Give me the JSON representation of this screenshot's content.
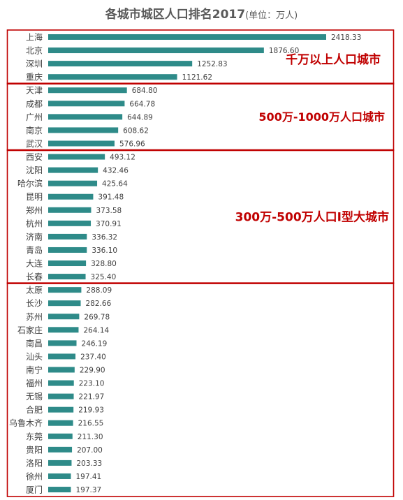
{
  "chart_data": {
    "type": "bar",
    "orientation": "horizontal",
    "title": "各城市城区人口排名2017",
    "unit_label": "(单位：万人)",
    "bar_color": "#2e8b89",
    "box_color": "#c00000",
    "categories": [
      "上海",
      "北京",
      "深圳",
      "重庆",
      "天津",
      "成都",
      "广州",
      "南京",
      "武汉",
      "西安",
      "沈阳",
      "哈尔滨",
      "昆明",
      "郑州",
      "杭州",
      "济南",
      "青岛",
      "大连",
      "长春",
      "太原",
      "长沙",
      "苏州",
      "石家庄",
      "南昌",
      "汕头",
      "南宁",
      "福州",
      "无锡",
      "合肥",
      "乌鲁木齐",
      "东莞",
      "贵阳",
      "洛阳",
      "徐州",
      "厦门"
    ],
    "values": [
      2418.33,
      1876.6,
      1252.83,
      1121.62,
      684.8,
      664.78,
      644.89,
      608.62,
      576.96,
      493.12,
      432.46,
      425.64,
      391.48,
      373.58,
      370.91,
      336.32,
      336.1,
      328.8,
      325.4,
      288.09,
      282.66,
      269.78,
      264.14,
      246.19,
      237.4,
      229.9,
      223.1,
      221.97,
      219.93,
      216.55,
      211.3,
      207.0,
      203.33,
      197.41,
      197.37
    ],
    "value_labels": [
      "2418.33",
      "1876.60",
      "1252.83",
      "1121.62",
      "684.80",
      "664.78",
      "644.89",
      "608.62",
      "576.96",
      "493.12",
      "432.46",
      "425.64",
      "391.48",
      "373.58",
      "370.91",
      "336.32",
      "336.10",
      "328.80",
      "325.40",
      "288.09",
      "282.66",
      "269.78",
      "264.14",
      "246.19",
      "237.40",
      "229.90",
      "223.10",
      "221.97",
      "219.93",
      "216.55",
      "211.30",
      "207.00",
      "203.33",
      "197.41",
      "197.37"
    ],
    "groups": [
      {
        "label": "千万以上人口城市",
        "start": 0,
        "end": 3
      },
      {
        "label": "500万-1000万人口城市",
        "start": 4,
        "end": 8
      },
      {
        "label": "300万-500万人口I型大城市",
        "start": 9,
        "end": 18
      },
      {
        "label": "",
        "start": 19,
        "end": 34
      }
    ]
  }
}
